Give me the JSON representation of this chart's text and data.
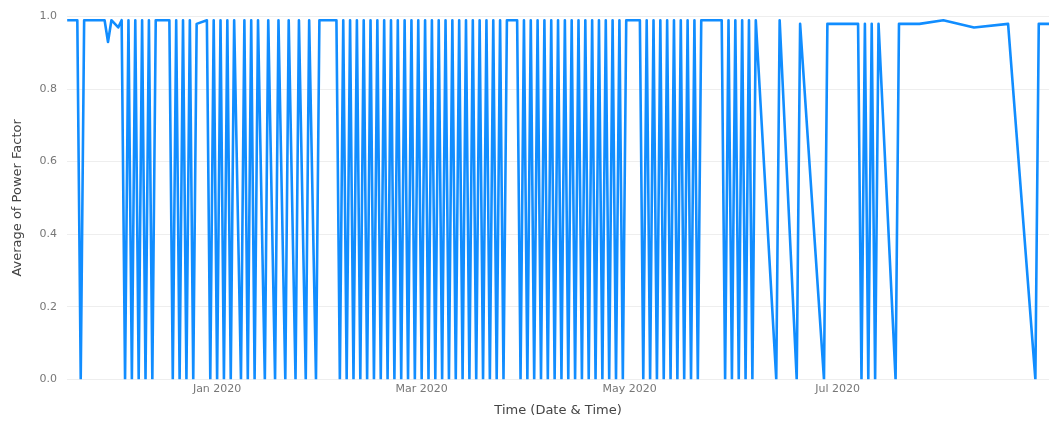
{
  "chart_data": {
    "type": "line",
    "xlabel": "Time (Date & Time)",
    "ylabel": "Average of Power Factor",
    "xlim": [
      "2019-11-18",
      "2020-09-01"
    ],
    "xticks": [
      {
        "value": "2020-01-01",
        "label": "Jan 2020"
      },
      {
        "value": "2020-03-01",
        "label": "Mar 2020"
      },
      {
        "value": "2020-05-01",
        "label": "May 2020"
      },
      {
        "value": "2020-07-01",
        "label": "Jul 2020"
      }
    ],
    "ylim": [
      0,
      1.0
    ],
    "yticks": [
      {
        "value": 0,
        "label": "0.0"
      },
      {
        "value": 0.2,
        "label": "0.2"
      },
      {
        "value": 0.4,
        "label": "0.4"
      },
      {
        "value": 0.6,
        "label": "0.6"
      },
      {
        "value": 0.8,
        "label": "0.8"
      },
      {
        "value": 1.0,
        "label": "1.0"
      }
    ],
    "grid": "y",
    "legend": false,
    "marker": "none",
    "line_style": "solid",
    "series": [
      {
        "color": "#118dff",
        "x": [
          "2019-11-18",
          "2019-11-21",
          "2019-11-22",
          "2019-11-23",
          "2019-11-29",
          "2019-11-30",
          "2019-12-01",
          "2019-12-03",
          "2019-12-04",
          "2019-12-05",
          "2019-12-06",
          "2019-12-07",
          "2019-12-08",
          "2019-12-09",
          "2019-12-10",
          "2019-12-11",
          "2019-12-12",
          "2019-12-13",
          "2019-12-14",
          "2019-12-18",
          "2019-12-19",
          "2019-12-20",
          "2019-12-21",
          "2019-12-22",
          "2019-12-23",
          "2019-12-24",
          "2019-12-25",
          "2019-12-26",
          "2019-12-29",
          "2019-12-30",
          "2019-12-31",
          "2020-01-01",
          "2020-01-02",
          "2020-01-03",
          "2020-01-04",
          "2020-01-05",
          "2020-01-06",
          "2020-01-08",
          "2020-01-09",
          "2020-01-10",
          "2020-01-11",
          "2020-01-12",
          "2020-01-13",
          "2020-01-15",
          "2020-01-16",
          "2020-01-18",
          "2020-01-19",
          "2020-01-21",
          "2020-01-22",
          "2020-01-24",
          "2020-01-25",
          "2020-01-27",
          "2020-01-28",
          "2020-01-30",
          "2020-01-31",
          "2020-02-05",
          "2020-02-06",
          "2020-02-07",
          "2020-02-08",
          "2020-02-09",
          "2020-02-10",
          "2020-02-11",
          "2020-02-12",
          "2020-02-13",
          "2020-02-14",
          "2020-02-15",
          "2020-02-16",
          "2020-02-17",
          "2020-02-18",
          "2020-02-19",
          "2020-02-20",
          "2020-02-21",
          "2020-02-22",
          "2020-02-23",
          "2020-02-24",
          "2020-02-25",
          "2020-02-26",
          "2020-02-27",
          "2020-02-28",
          "2020-02-29",
          "2020-03-01",
          "2020-03-02",
          "2020-03-03",
          "2020-03-04",
          "2020-03-05",
          "2020-03-06",
          "2020-03-07",
          "2020-03-08",
          "2020-03-09",
          "2020-03-10",
          "2020-03-11",
          "2020-03-12",
          "2020-03-13",
          "2020-03-14",
          "2020-03-15",
          "2020-03-16",
          "2020-03-17",
          "2020-03-18",
          "2020-03-19",
          "2020-03-20",
          "2020-03-21",
          "2020-03-22",
          "2020-03-23",
          "2020-03-24",
          "2020-03-25",
          "2020-03-26",
          "2020-03-29",
          "2020-03-30",
          "2020-03-31",
          "2020-04-01",
          "2020-04-02",
          "2020-04-03",
          "2020-04-04",
          "2020-04-05",
          "2020-04-06",
          "2020-04-07",
          "2020-04-08",
          "2020-04-09",
          "2020-04-10",
          "2020-04-11",
          "2020-04-12",
          "2020-04-13",
          "2020-04-14",
          "2020-04-15",
          "2020-04-16",
          "2020-04-17",
          "2020-04-18",
          "2020-04-19",
          "2020-04-20",
          "2020-04-21",
          "2020-04-22",
          "2020-04-23",
          "2020-04-24",
          "2020-04-25",
          "2020-04-26",
          "2020-04-27",
          "2020-04-28",
          "2020-04-29",
          "2020-04-30",
          "2020-05-04",
          "2020-05-05",
          "2020-05-06",
          "2020-05-07",
          "2020-05-08",
          "2020-05-09",
          "2020-05-10",
          "2020-05-11",
          "2020-05-12",
          "2020-05-13",
          "2020-05-14",
          "2020-05-15",
          "2020-05-16",
          "2020-05-17",
          "2020-05-18",
          "2020-05-19",
          "2020-05-20",
          "2020-05-21",
          "2020-05-22",
          "2020-05-28",
          "2020-05-29",
          "2020-05-30",
          "2020-05-31",
          "2020-06-01",
          "2020-06-02",
          "2020-06-03",
          "2020-06-04",
          "2020-06-05",
          "2020-06-06",
          "2020-06-07",
          "2020-06-13",
          "2020-06-14",
          "2020-06-19",
          "2020-06-20",
          "2020-06-27",
          "2020-06-28",
          "2020-07-07",
          "2020-07-08",
          "2020-07-09",
          "2020-07-10",
          "2020-07-11",
          "2020-07-12",
          "2020-07-13",
          "2020-07-18",
          "2020-07-19",
          "2020-07-25",
          "2020-08-01",
          "2020-08-10",
          "2020-08-20",
          "2020-08-28",
          "2020-08-29",
          "2020-09-01"
        ],
        "values": [
          0.99,
          0.99,
          0,
          0.99,
          0.99,
          0.93,
          0.99,
          0.97,
          0.99,
          0,
          0.99,
          0,
          0.99,
          0,
          0.99,
          0,
          0.99,
          0,
          0.99,
          0.99,
          0,
          0.99,
          0,
          0.99,
          0,
          0.99,
          0,
          0.98,
          0.99,
          0,
          0.99,
          0,
          0.99,
          0,
          0.99,
          0,
          0.99,
          0,
          0.99,
          0,
          0.99,
          0,
          0.99,
          0,
          0.99,
          0,
          0.99,
          0,
          0.99,
          0,
          0.99,
          0,
          0.99,
          0,
          0.99,
          0.99,
          0,
          0.99,
          0,
          0.99,
          0,
          0.99,
          0,
          0.99,
          0,
          0.99,
          0,
          0.99,
          0,
          0.99,
          0,
          0.99,
          0,
          0.99,
          0,
          0.99,
          0,
          0.99,
          0,
          0.99,
          0,
          0.99,
          0,
          0.99,
          0,
          0.99,
          0,
          0.99,
          0,
          0.99,
          0,
          0.99,
          0,
          0.99,
          0,
          0.99,
          0,
          0.99,
          0,
          0.99,
          0,
          0.99,
          0,
          0.99,
          0,
          0.99,
          0.99,
          0,
          0.99,
          0,
          0.99,
          0,
          0.99,
          0,
          0.99,
          0,
          0.99,
          0,
          0.99,
          0,
          0.99,
          0,
          0.99,
          0,
          0.99,
          0,
          0.99,
          0,
          0.99,
          0,
          0.99,
          0,
          0.99,
          0,
          0.99,
          0,
          0.99,
          0,
          0.99,
          0.99,
          0,
          0.99,
          0,
          0.99,
          0,
          0.99,
          0,
          0.99,
          0,
          0.99,
          0,
          0.99,
          0,
          0.99,
          0,
          0.99,
          0,
          0.99,
          0.99,
          0,
          0.99,
          0,
          0.99,
          0,
          0.99,
          0,
          0.99,
          0,
          0.99,
          0,
          0.99,
          0,
          0.98,
          0,
          0.98,
          0.98,
          0,
          0.98,
          0,
          0.98,
          0,
          0.98,
          0,
          0.98,
          0.98,
          0.99,
          0.97,
          0.98,
          0,
          0.98,
          0.98
        ]
      }
    ]
  }
}
